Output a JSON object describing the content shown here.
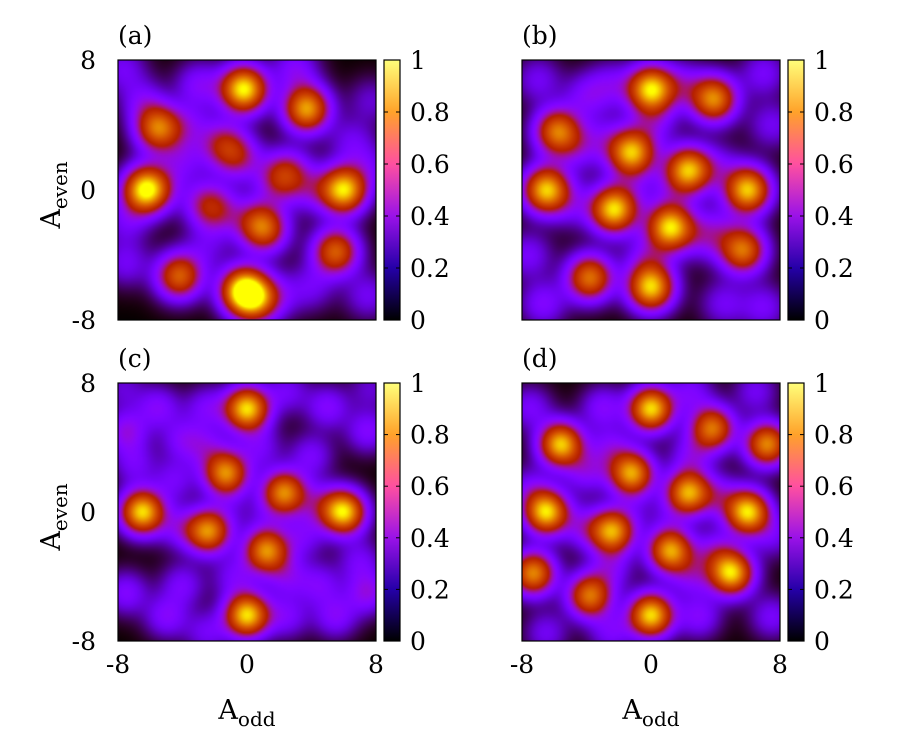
{
  "chart_data": [
    {
      "type": "heatmap",
      "panel_label": "(a)",
      "ylabel": "A",
      "ylabel_sub": "even",
      "xlabel": "",
      "xlabel_sub": "",
      "x_ticks": [],
      "y_ticks": [
        "8",
        "0",
        "-8"
      ],
      "xlim": [
        -8,
        8
      ],
      "ylim": [
        -8,
        8
      ],
      "colorbar": {
        "range": [
          0,
          1
        ],
        "ticks": [
          "1",
          "0.8",
          "0.6",
          "0.4",
          "0.2",
          "0"
        ]
      },
      "sigma": 1.0,
      "blobs": [
        [
          -0.2,
          6.2,
          1.0
        ],
        [
          3.7,
          5.0,
          0.85
        ],
        [
          -5.5,
          3.8,
          0.75
        ],
        [
          -6.3,
          0.0,
          0.95
        ],
        [
          6.0,
          0.0,
          0.95
        ],
        [
          -4.2,
          -5.3,
          0.7
        ],
        [
          5.5,
          -3.8,
          0.7
        ],
        [
          -0.2,
          -6.2,
          1.0
        ],
        [
          0.6,
          -6.8,
          0.5
        ],
        [
          -1.5,
          2.8,
          0.4
        ],
        [
          -0.5,
          2.0,
          0.35
        ],
        [
          2.0,
          0.6,
          0.35
        ],
        [
          2.6,
          1.2,
          0.3
        ],
        [
          -2.6,
          -0.8,
          0.3
        ],
        [
          -1.8,
          -1.3,
          0.3
        ],
        [
          1.2,
          -2.5,
          0.45
        ],
        [
          0.6,
          -2.0,
          0.4
        ],
        [
          -5.5,
          0.2,
          0.15
        ],
        [
          -4.0,
          1.8,
          0.2
        ],
        [
          4.0,
          0.0,
          0.2
        ],
        [
          -3.0,
          6.5,
          0.25
        ],
        [
          3.0,
          7.5,
          0.25
        ],
        [
          -7.7,
          7.5,
          0.2
        ],
        [
          6.5,
          3.0,
          0.18
        ],
        [
          7.5,
          -6.5,
          0.2
        ],
        [
          -7.5,
          -4.5,
          0.2
        ],
        [
          -6.5,
          5.5,
          0.2
        ],
        [
          2.0,
          -6.5,
          0.15
        ],
        [
          4.0,
          -6.0,
          0.18
        ],
        [
          -2.5,
          -3.5,
          0.15
        ],
        [
          -3.5,
          4.0,
          0.18
        ],
        [
          7.7,
          5.5,
          0.15
        ],
        [
          -7.5,
          -2.0,
          0.18
        ],
        [
          7.6,
          1.5,
          0.15
        ]
      ]
    },
    {
      "type": "heatmap",
      "panel_label": "(b)",
      "ylabel": "",
      "ylabel_sub": "",
      "xlabel": "",
      "xlabel_sub": "",
      "x_ticks": [],
      "y_ticks": [],
      "xlim": [
        -8,
        8
      ],
      "ylim": [
        -8,
        8
      ],
      "colorbar": {
        "range": [
          0,
          1
        ],
        "ticks": [
          "1",
          "0.8",
          "0.6",
          "0.4",
          "0.2",
          "0"
        ]
      },
      "sigma": 1.0,
      "blobs": [
        [
          0.0,
          6.2,
          0.95
        ],
        [
          3.9,
          5.6,
          0.8
        ],
        [
          -5.8,
          3.6,
          0.75
        ],
        [
          -1.2,
          2.3,
          0.9
        ],
        [
          2.3,
          1.2,
          0.9
        ],
        [
          -6.5,
          0.0,
          0.92
        ],
        [
          6.0,
          0.0,
          0.92
        ],
        [
          -2.3,
          -1.2,
          0.95
        ],
        [
          1.2,
          -2.3,
          0.95
        ],
        [
          -3.8,
          -5.4,
          0.75
        ],
        [
          5.7,
          -3.7,
          0.75
        ],
        [
          0.0,
          -6.0,
          0.92
        ],
        [
          -4.0,
          5.8,
          0.22
        ],
        [
          -7.0,
          6.8,
          0.2
        ],
        [
          7.0,
          7.2,
          0.22
        ],
        [
          7.5,
          4.0,
          0.2
        ],
        [
          7.0,
          -7.2,
          0.22
        ],
        [
          -7.6,
          -4.0,
          0.22
        ],
        [
          -6.7,
          -7.0,
          0.25
        ],
        [
          4.5,
          -7.0,
          0.2
        ],
        [
          -2.5,
          6.5,
          0.2
        ],
        [
          2.0,
          6.5,
          0.2
        ],
        [
          0.2,
          4.2,
          0.2
        ],
        [
          -4.5,
          2.5,
          0.18
        ],
        [
          4.0,
          -2.5,
          0.18
        ],
        [
          -0.3,
          -4.2,
          0.2
        ],
        [
          -3.0,
          3.2,
          0.15
        ],
        [
          3.2,
          -3.0,
          0.15
        ],
        [
          -4.8,
          -1.0,
          0.15
        ],
        [
          4.2,
          1.5,
          0.15
        ],
        [
          -1.0,
          0.2,
          0.08
        ],
        [
          1.0,
          -0.2,
          0.08
        ]
      ]
    },
    {
      "type": "heatmap",
      "panel_label": "(c)",
      "ylabel": "A",
      "ylabel_sub": "even",
      "xlabel": "A",
      "xlabel_sub": "odd",
      "x_ticks": [
        "-8",
        "0",
        "8"
      ],
      "y_ticks": [
        "8",
        "0",
        "-8"
      ],
      "xlim": [
        -8,
        8
      ],
      "ylim": [
        -8,
        8
      ],
      "colorbar": {
        "range": [
          0,
          1
        ],
        "ticks": [
          "1",
          "0.8",
          "0.6",
          "0.4",
          "0.2",
          "0"
        ]
      },
      "sigma": 0.95,
      "blobs": [
        [
          0.0,
          6.4,
          0.95
        ],
        [
          -1.3,
          2.4,
          0.8
        ],
        [
          2.3,
          1.2,
          0.8
        ],
        [
          -6.5,
          0.0,
          0.95
        ],
        [
          6.0,
          0.0,
          0.95
        ],
        [
          -2.4,
          -1.2,
          0.8
        ],
        [
          1.2,
          -2.4,
          0.8
        ],
        [
          0.0,
          -6.4,
          0.95
        ],
        [
          -5.5,
          6.5,
          0.25
        ],
        [
          -2.5,
          6.5,
          0.22
        ],
        [
          2.5,
          7.5,
          0.2
        ],
        [
          5.0,
          6.5,
          0.25
        ],
        [
          7.5,
          5.0,
          0.25
        ],
        [
          -7.5,
          5.0,
          0.3
        ],
        [
          -4.0,
          4.5,
          0.22
        ],
        [
          -2.5,
          4.0,
          0.2
        ],
        [
          0.8,
          4.0,
          0.2
        ],
        [
          4.0,
          3.5,
          0.22
        ],
        [
          -4.5,
          2.0,
          0.2
        ],
        [
          4.5,
          0.5,
          0.2
        ],
        [
          -4.2,
          -1.0,
          0.2
        ],
        [
          3.5,
          -1.5,
          0.2
        ],
        [
          -4.0,
          -4.5,
          0.22
        ],
        [
          -0.8,
          -4.0,
          0.2
        ],
        [
          2.5,
          -4.0,
          0.22
        ],
        [
          4.5,
          -4.5,
          0.22
        ],
        [
          -5.0,
          -6.5,
          0.25
        ],
        [
          -2.5,
          -7.5,
          0.2
        ],
        [
          2.5,
          -6.5,
          0.22
        ],
        [
          5.5,
          -6.5,
          0.25
        ],
        [
          -7.5,
          -5.0,
          0.25
        ],
        [
          7.5,
          -5.0,
          0.3
        ],
        [
          -7.0,
          3.0,
          0.2
        ],
        [
          7.0,
          -3.0,
          0.2
        ],
        [
          -7.7,
          7.7,
          0.15
        ],
        [
          7.7,
          7.7,
          0.15
        ],
        [
          -1.0,
          0.3,
          0.08
        ],
        [
          1.0,
          -0.3,
          0.08
        ]
      ]
    },
    {
      "type": "heatmap",
      "panel_label": "(d)",
      "ylabel": "",
      "ylabel_sub": "",
      "xlabel": "A",
      "xlabel_sub": "odd",
      "x_ticks": [
        "-8",
        "0",
        "8"
      ],
      "y_ticks": [],
      "xlim": [
        -8,
        8
      ],
      "ylim": [
        -8,
        8
      ],
      "colorbar": {
        "range": [
          0,
          1
        ],
        "ticks": [
          "1",
          "0.8",
          "0.6",
          "0.4",
          "0.2",
          "0"
        ]
      },
      "sigma": 0.95,
      "blobs": [
        [
          0.0,
          6.4,
          0.95
        ],
        [
          -5.6,
          4.2,
          0.92
        ],
        [
          3.8,
          5.2,
          0.75
        ],
        [
          7.2,
          4.2,
          0.8
        ],
        [
          -1.2,
          2.4,
          0.85
        ],
        [
          2.3,
          1.2,
          0.85
        ],
        [
          -6.5,
          0.0,
          0.95
        ],
        [
          6.0,
          0.0,
          0.95
        ],
        [
          -2.4,
          -1.2,
          0.85
        ],
        [
          1.2,
          -2.4,
          0.85
        ],
        [
          -7.3,
          -3.8,
          0.8
        ],
        [
          -3.8,
          -5.2,
          0.75
        ],
        [
          5.0,
          -3.8,
          0.92
        ],
        [
          0.0,
          -6.4,
          0.95
        ],
        [
          -3.0,
          6.5,
          0.25
        ],
        [
          2.5,
          7.5,
          0.22
        ],
        [
          -7.5,
          6.5,
          0.22
        ],
        [
          6.5,
          7.5,
          0.2
        ],
        [
          -4.0,
          2.5,
          0.25
        ],
        [
          4.0,
          -2.5,
          0.25
        ],
        [
          -2.5,
          4.0,
          0.22
        ],
        [
          2.5,
          3.5,
          0.22
        ],
        [
          -4.2,
          -1.0,
          0.22
        ],
        [
          4.2,
          1.0,
          0.22
        ],
        [
          -2.5,
          -3.5,
          0.22
        ],
        [
          2.5,
          -4.0,
          0.22
        ],
        [
          -2.5,
          -7.5,
          0.22
        ],
        [
          3.0,
          -6.5,
          0.25
        ],
        [
          7.5,
          -6.5,
          0.22
        ],
        [
          -6.5,
          -7.5,
          0.2
        ],
        [
          7.6,
          -1.5,
          0.18
        ],
        [
          -7.6,
          1.5,
          0.18
        ],
        [
          -1.0,
          0.3,
          0.08
        ],
        [
          1.0,
          -0.3,
          0.08
        ]
      ]
    }
  ]
}
